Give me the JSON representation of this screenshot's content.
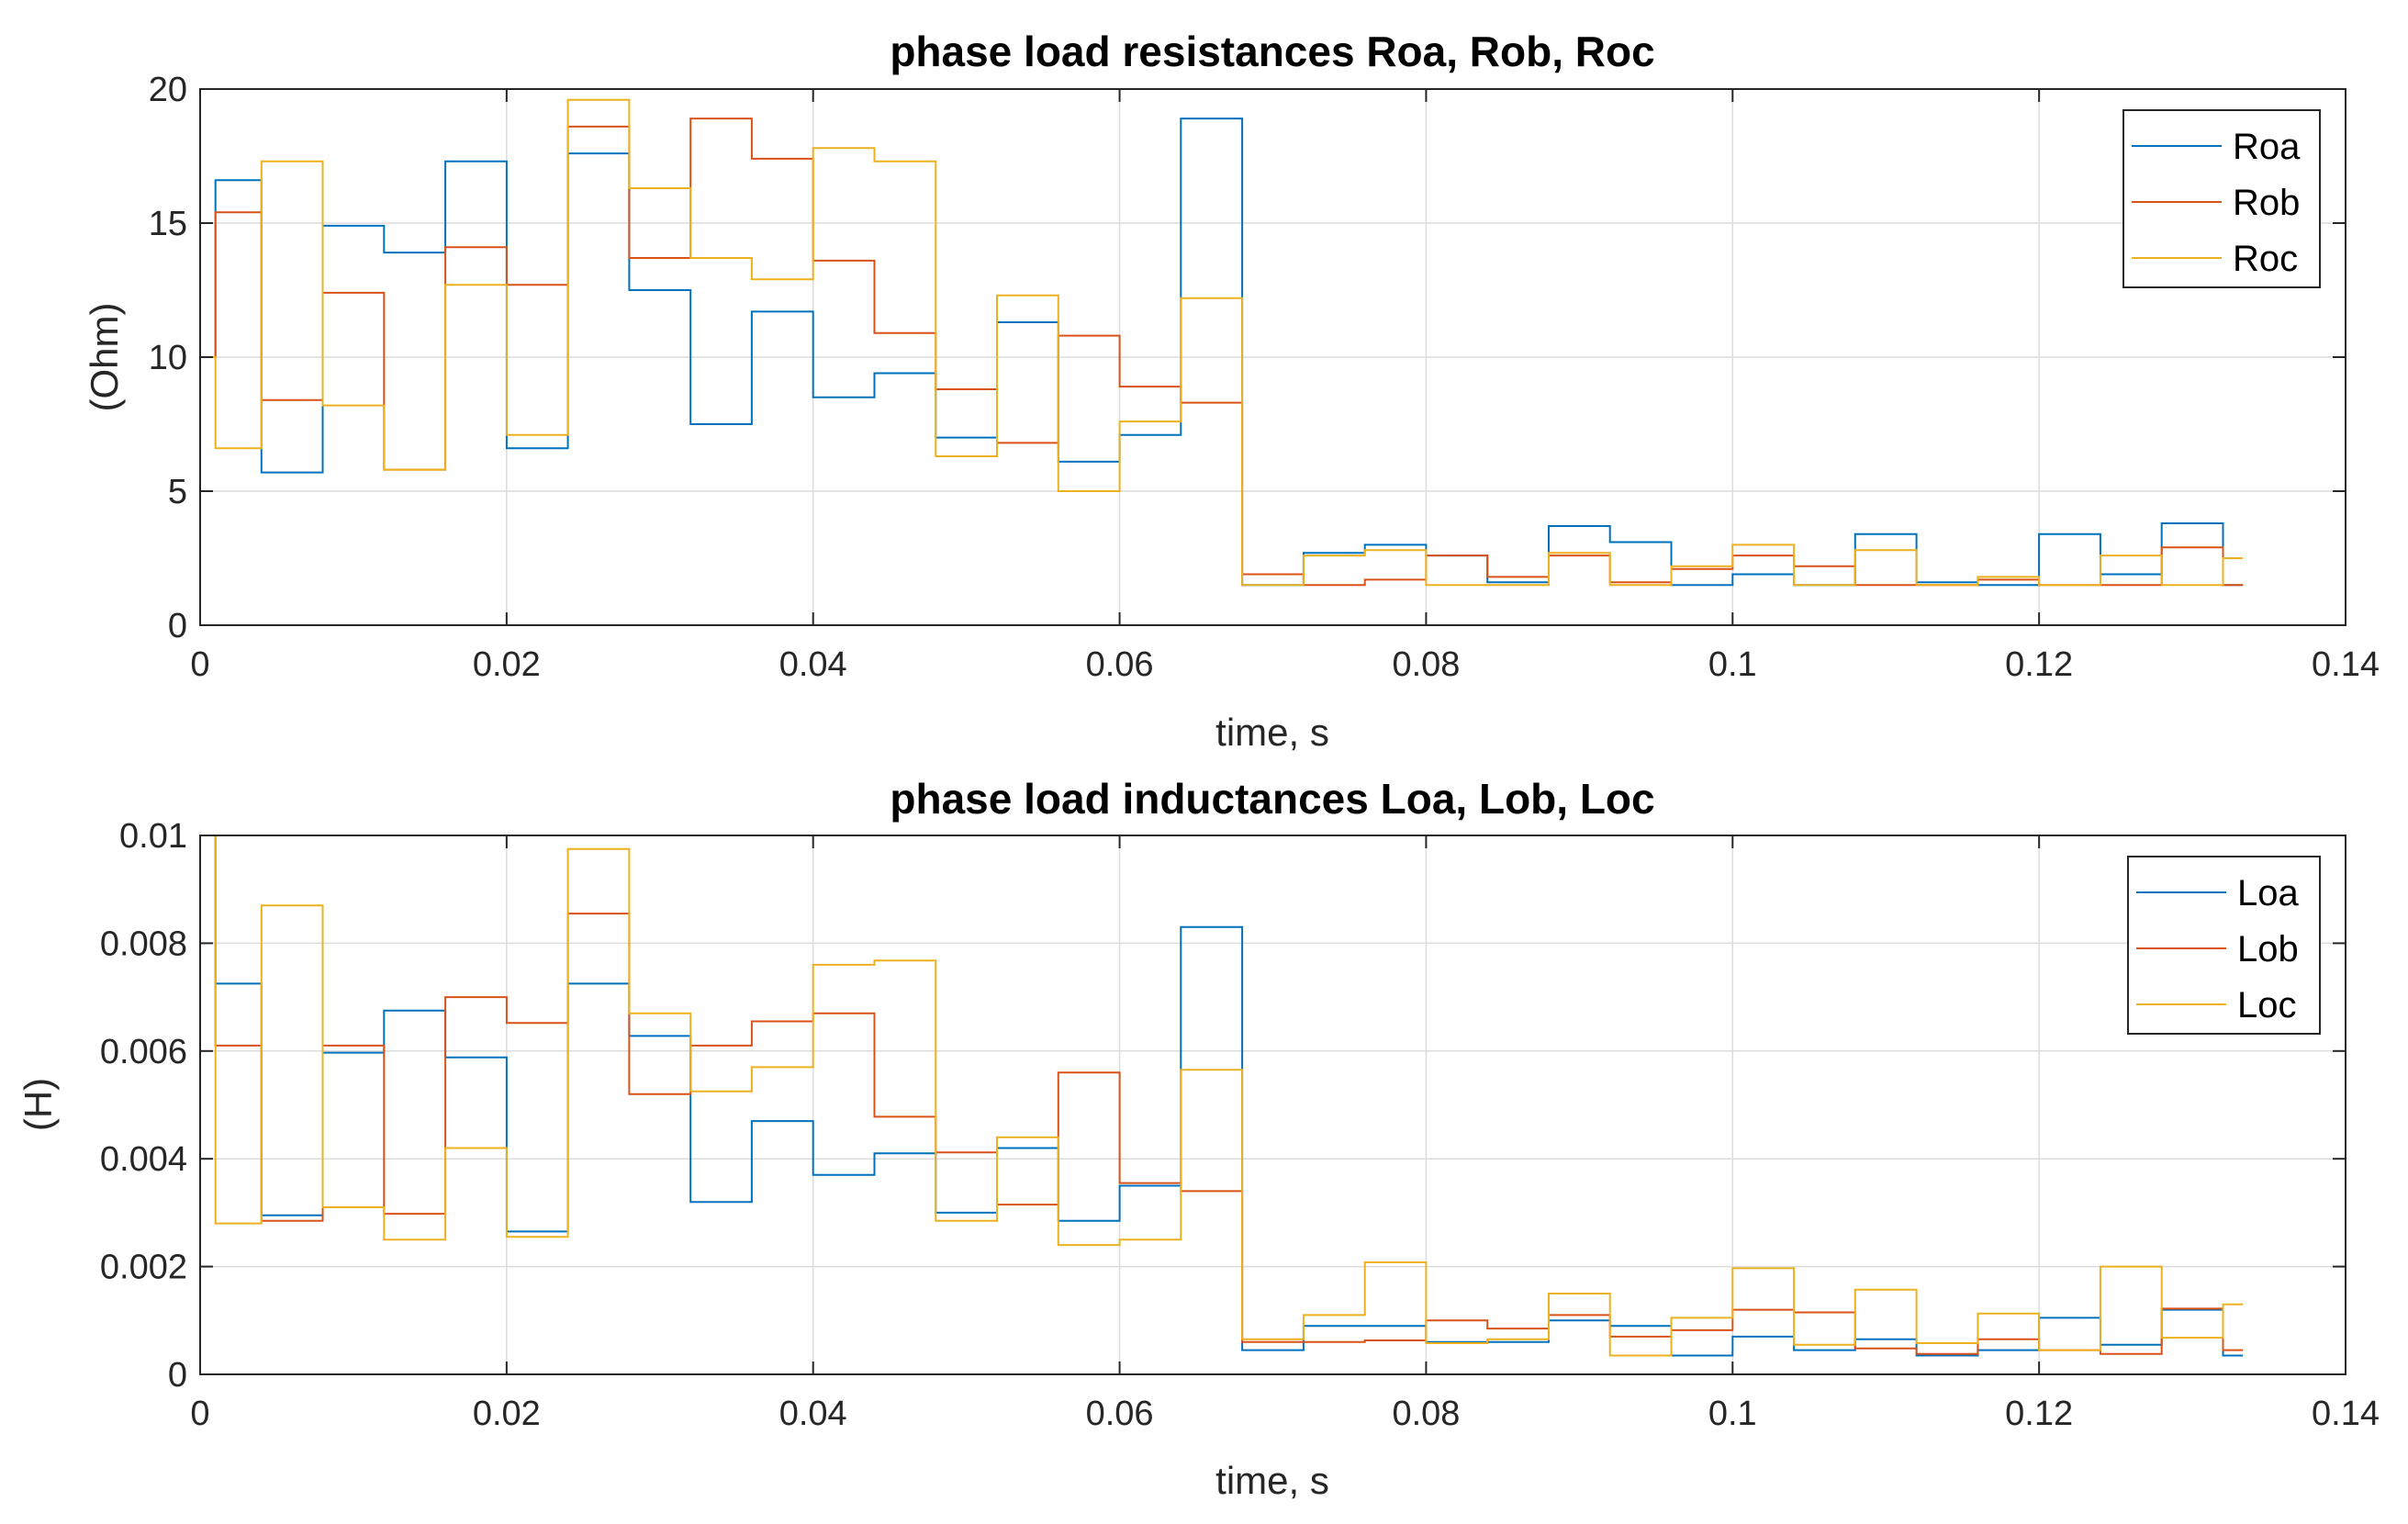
{
  "chart_data": [
    {
      "type": "line",
      "step": true,
      "title": "phase load resistances Roa, Rob, Roc",
      "xlabel": "time, s",
      "ylabel": "(Ohm)",
      "xlim": [
        0,
        0.14
      ],
      "ylim": [
        0,
        20
      ],
      "xticks": [
        0,
        0.02,
        0.04,
        0.06,
        0.08,
        0.1,
        0.12,
        0.14
      ],
      "xtick_labels": [
        "0",
        "0.02",
        "0.04",
        "0.06",
        "0.08",
        "0.1",
        "0.12",
        "0.14"
      ],
      "yticks": [
        0,
        5,
        10,
        15,
        20
      ],
      "ytick_labels": [
        "0",
        "5",
        "10",
        "15",
        "20"
      ],
      "grid": true,
      "legend_position": "top-right",
      "x_end": 0.1333,
      "x": [
        0,
        0.001,
        0.004,
        0.008,
        0.012,
        0.016,
        0.02,
        0.024,
        0.028,
        0.032,
        0.036,
        0.04,
        0.044,
        0.048,
        0.052,
        0.056,
        0.06,
        0.064,
        0.068,
        0.072,
        0.076,
        0.08,
        0.084,
        0.088,
        0.092,
        0.096,
        0.1,
        0.104,
        0.108,
        0.112,
        0.116,
        0.12,
        0.124,
        0.128,
        0.132
      ],
      "series": [
        {
          "name": "Roa",
          "color": "#0072BD",
          "values": [
            10,
            16.6,
            5.7,
            14.9,
            13.9,
            17.3,
            6.6,
            17.6,
            12.5,
            7.5,
            11.7,
            8.5,
            9.4,
            7.0,
            11.3,
            6.1,
            7.1,
            18.9,
            1.5,
            2.7,
            3.0,
            2.6,
            1.6,
            3.7,
            3.1,
            1.5,
            1.9,
            1.5,
            3.4,
            1.6,
            1.5,
            3.4,
            1.9,
            3.8,
            1.5
          ]
        },
        {
          "name": "Rob",
          "color": "#D95319",
          "values": [
            10,
            15.4,
            8.4,
            12.4,
            5.8,
            14.1,
            12.7,
            18.6,
            13.7,
            18.9,
            17.4,
            13.6,
            10.9,
            8.8,
            6.8,
            10.8,
            8.9,
            8.3,
            1.9,
            1.5,
            1.7,
            2.6,
            1.8,
            2.6,
            1.6,
            2.1,
            2.6,
            2.2,
            1.5,
            1.5,
            1.7,
            1.5,
            1.5,
            2.9,
            1.5
          ]
        },
        {
          "name": "Roc",
          "color": "#EDB120",
          "values": [
            10,
            6.6,
            17.3,
            8.2,
            5.8,
            12.7,
            7.1,
            19.6,
            16.3,
            13.7,
            12.9,
            17.8,
            17.3,
            6.3,
            12.3,
            5.0,
            7.6,
            12.2,
            1.5,
            2.6,
            2.8,
            1.5,
            1.5,
            2.7,
            1.5,
            2.2,
            3.0,
            1.5,
            2.8,
            1.5,
            1.8,
            1.5,
            2.6,
            1.5,
            2.5
          ]
        }
      ]
    },
    {
      "type": "line",
      "step": true,
      "title": "phase load inductances Loa, Lob, Loc",
      "xlabel": "time, s",
      "ylabel": "(H)",
      "xlim": [
        0,
        0.14
      ],
      "ylim": [
        0,
        0.01
      ],
      "xticks": [
        0,
        0.02,
        0.04,
        0.06,
        0.08,
        0.1,
        0.12,
        0.14
      ],
      "xtick_labels": [
        "0",
        "0.02",
        "0.04",
        "0.06",
        "0.08",
        "0.1",
        "0.12",
        "0.14"
      ],
      "yticks": [
        0,
        0.002,
        0.004,
        0.006,
        0.008,
        0.01
      ],
      "ytick_labels": [
        "0",
        "0.002",
        "0.004",
        "0.006",
        "0.008",
        "0.01"
      ],
      "grid": true,
      "legend_position": "top-right",
      "x_end": 0.1333,
      "x": [
        0,
        0.001,
        0.004,
        0.008,
        0.012,
        0.016,
        0.02,
        0.024,
        0.028,
        0.032,
        0.036,
        0.04,
        0.044,
        0.048,
        0.052,
        0.056,
        0.06,
        0.064,
        0.068,
        0.072,
        0.076,
        0.08,
        0.084,
        0.088,
        0.092,
        0.096,
        0.1,
        0.104,
        0.108,
        0.112,
        0.116,
        0.12,
        0.124,
        0.128,
        0.132
      ],
      "series": [
        {
          "name": "Loa",
          "color": "#0072BD",
          "values": [
            0.01,
            0.00725,
            0.00295,
            0.00597,
            0.00675,
            0.00588,
            0.00265,
            0.00725,
            0.00628,
            0.0032,
            0.0047,
            0.0037,
            0.0041,
            0.003,
            0.0042,
            0.00285,
            0.0035,
            0.0083,
            0.00045,
            0.0009,
            0.0009,
            0.0006,
            0.0006,
            0.001,
            0.0009,
            0.00035,
            0.0007,
            0.00045,
            0.00065,
            0.00035,
            0.00045,
            0.00105,
            0.00055,
            0.0012,
            0.00035
          ]
        },
        {
          "name": "Lob",
          "color": "#D95319",
          "values": [
            0.01,
            0.0061,
            0.00285,
            0.0061,
            0.00298,
            0.007,
            0.00652,
            0.00855,
            0.0052,
            0.0061,
            0.00655,
            0.0067,
            0.00478,
            0.00412,
            0.00315,
            0.0056,
            0.00355,
            0.0034,
            0.0006,
            0.0006,
            0.00063,
            0.001,
            0.00085,
            0.0011,
            0.0007,
            0.00082,
            0.0012,
            0.00115,
            0.00048,
            0.00038,
            0.00065,
            0.00045,
            0.00038,
            0.00122,
            0.00045
          ]
        },
        {
          "name": "Loc",
          "color": "#EDB120",
          "values": [
            0.01,
            0.0028,
            0.0087,
            0.0031,
            0.0025,
            0.0042,
            0.00255,
            0.00975,
            0.0067,
            0.00525,
            0.0057,
            0.0076,
            0.00768,
            0.00285,
            0.0044,
            0.0024,
            0.0025,
            0.00565,
            0.00065,
            0.0011,
            0.00208,
            0.00058,
            0.00065,
            0.0015,
            0.00035,
            0.00105,
            0.00197,
            0.00055,
            0.00157,
            0.00058,
            0.00113,
            0.00045,
            0.002,
            0.00068,
            0.0013
          ]
        }
      ]
    }
  ]
}
